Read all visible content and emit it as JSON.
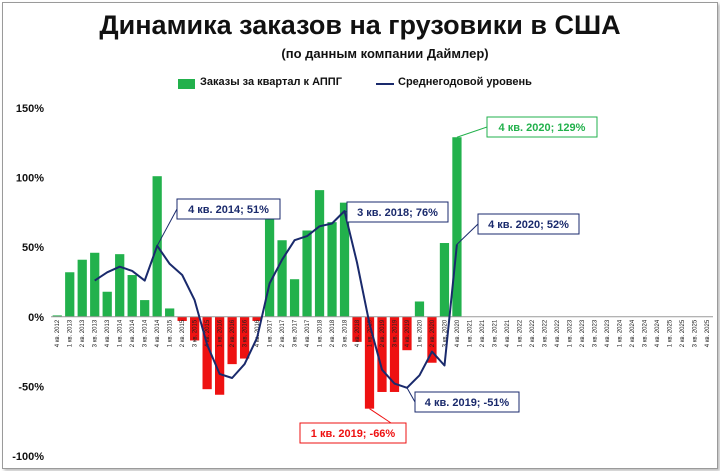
{
  "chart_data": {
    "type": "bar",
    "title": "Динамика заказов на грузовики в США",
    "subtitle": "(по данным  компании  Даймлер)",
    "legend": [
      "Заказы за квартал  к АППГ",
      "Среднегодовой уровень"
    ],
    "legend_position": "top",
    "ylim": [
      -100,
      150
    ],
    "yticks": [
      150,
      100,
      50,
      0,
      -50,
      -100
    ],
    "ytick_labels": [
      "150%",
      "100%",
      "50%",
      "0%",
      "-50%",
      "-100%"
    ],
    "grid": false,
    "categories": [
      "4 кв. 2012",
      "1 кв. 2013",
      "2 кв. 2013",
      "3 кв. 2013",
      "4 кв. 2013",
      "1 кв. 2014",
      "2 кв. 2014",
      "3 кв. 2014",
      "4 кв. 2014",
      "1 кв. 2015",
      "2 кв. 2015",
      "3 кв. 2015",
      "4 кв. 2015",
      "1 кв. 2016",
      "2 кв. 2016",
      "3 кв. 2016",
      "4 кв. 2016",
      "1 кв. 2017",
      "2 кв. 2017",
      "3 кв. 2017",
      "4 кв. 2017",
      "1 кв. 2018",
      "2 кв. 2018",
      "3 кв. 2018",
      "4 кв. 2018",
      "1 кв. 2019",
      "2 кв. 2019",
      "3 кв. 2019",
      "4 кв. 2019",
      "1 кв. 2020",
      "2 кв. 2020",
      "3 кв. 2020",
      "4 кв. 2020",
      "1 кв. 2021",
      "2 кв. 2021",
      "3 кв. 2021",
      "4 кв. 2021",
      "1 кв. 2022",
      "2 кв. 2022",
      "3 кв. 2022",
      "4 кв. 2022",
      "1 кв. 2023",
      "2 кв. 2023",
      "3 кв. 2023",
      "4 кв. 2023",
      "1 кв. 2024",
      "2 кв. 2024",
      "3 кв. 2024",
      "4 кв. 2024",
      "1 кв. 2025",
      "2 кв. 2025",
      "3 кв. 2025",
      "4 кв. 2025"
    ],
    "series": [
      {
        "name": "Заказы за квартал  к АППГ",
        "kind": "bar",
        "color_positive": "#22b14c",
        "color_negative": "#ee1111",
        "values": [
          1,
          32,
          41,
          46,
          18,
          45,
          30,
          12,
          101,
          6,
          -3,
          -17,
          -52,
          -56,
          -34,
          -30,
          -3,
          73,
          55,
          27,
          62,
          91,
          68,
          82,
          -18,
          -66,
          -54,
          -54,
          -24,
          11,
          -33,
          53,
          129,
          null,
          null,
          null,
          null,
          null,
          null,
          null,
          null,
          null,
          null,
          null,
          null,
          null,
          null,
          null,
          null,
          null,
          null,
          null,
          null
        ]
      },
      {
        "name": "Среднегодовой уровень",
        "kind": "line",
        "color": "#1a2a6c",
        "values": [
          null,
          null,
          null,
          26,
          32,
          36,
          33,
          26,
          51,
          38,
          30,
          12,
          -20,
          -41,
          -44,
          -34,
          -15,
          24,
          41,
          55,
          58,
          65,
          67,
          76,
          39,
          -5,
          -38,
          -48,
          -51,
          -42,
          -25,
          -35,
          52,
          null,
          null,
          null,
          null,
          null,
          null,
          null,
          null,
          null,
          null,
          null,
          null,
          null,
          null,
          null,
          null,
          null,
          null,
          null,
          null
        ]
      }
    ],
    "annotations": [
      {
        "text": "4 кв. 2014; 51%",
        "color": "#1a2a6c",
        "point_index": 8,
        "value": 51
      },
      {
        "text": "3 кв. 2018; 76%",
        "color": "#1a2a6c",
        "point_index": 23,
        "value": 76
      },
      {
        "text": "4 кв. 2020; 52%",
        "color": "#1a2a6c",
        "point_index": 32,
        "value": 52
      },
      {
        "text": "4 кв. 2020; 129%",
        "color": "#22b14c",
        "point_index": 32,
        "value": 129
      },
      {
        "text": "1 кв. 2019; -66%",
        "color": "#ee1111",
        "point_index": 25,
        "value": -66
      },
      {
        "text": "4 кв. 2019; -51%",
        "color": "#1a2a6c",
        "point_index": 28,
        "value": -51
      }
    ]
  }
}
